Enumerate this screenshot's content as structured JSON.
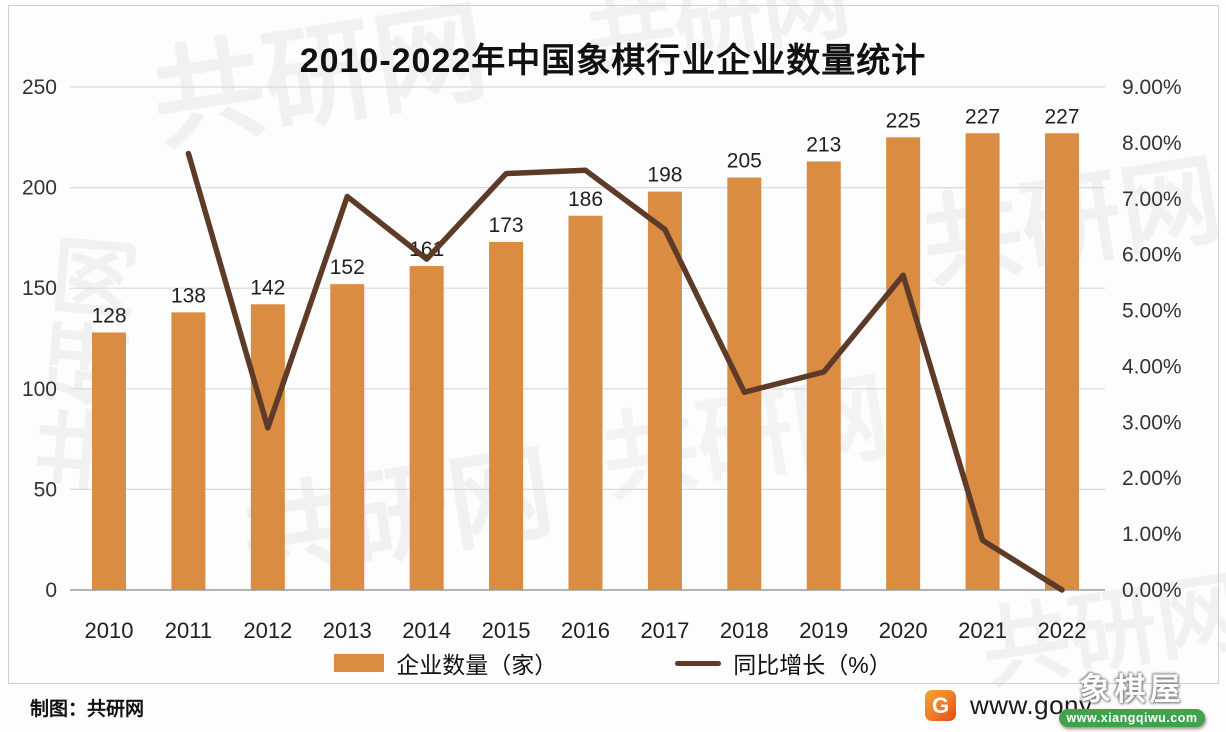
{
  "title": "2010-2022年中国象棋行业企业数量统计",
  "chart_data": {
    "type": "combo-bar-line",
    "title": "2010-2022年中国象棋行业企业数量统计",
    "categories": [
      "2010",
      "2011",
      "2012",
      "2013",
      "2014",
      "2015",
      "2016",
      "2017",
      "2018",
      "2019",
      "2020",
      "2021",
      "2022"
    ],
    "series": [
      {
        "name": "企业数量（家）",
        "type": "bar",
        "axis": "left",
        "color": "#D98C42",
        "values": [
          128,
          138,
          142,
          152,
          161,
          173,
          186,
          198,
          205,
          213,
          225,
          227,
          227
        ]
      },
      {
        "name": "同比增长（%）",
        "type": "line",
        "axis": "right",
        "color": "#5E3B28",
        "values": [
          null,
          7.81,
          2.9,
          7.04,
          5.92,
          7.45,
          7.51,
          6.45,
          3.54,
          3.9,
          5.63,
          0.89,
          0.0
        ]
      }
    ],
    "left_axis": {
      "min": 0,
      "max": 250,
      "step": 50,
      "tick_labels": [
        "0",
        "50",
        "100",
        "150",
        "200",
        "250"
      ]
    },
    "right_axis": {
      "min": 0,
      "max": 9,
      "step": 1,
      "tick_labels": [
        "0.00%",
        "1.00%",
        "2.00%",
        "3.00%",
        "4.00%",
        "5.00%",
        "6.00%",
        "7.00%",
        "8.00%",
        "9.00%"
      ]
    },
    "grid": true,
    "legend_position": "bottom",
    "colors": {
      "grid": "#D9D9D9",
      "axis_line": "#9A9A9A",
      "tick_text": "#333333",
      "data_label_text": "#1f1f1f"
    }
  },
  "legend": {
    "bar_label": "企业数量（家）",
    "line_label": "同比增长（%）"
  },
  "footer": {
    "credit": "制图：共研网",
    "logo_letter": "G",
    "site_url_visible": "www.gony"
  },
  "background_watermark": {
    "brand": "共研网"
  },
  "overlay_watermark": {
    "title": "象棋屋",
    "url": "www.xiangqiwu.com"
  }
}
